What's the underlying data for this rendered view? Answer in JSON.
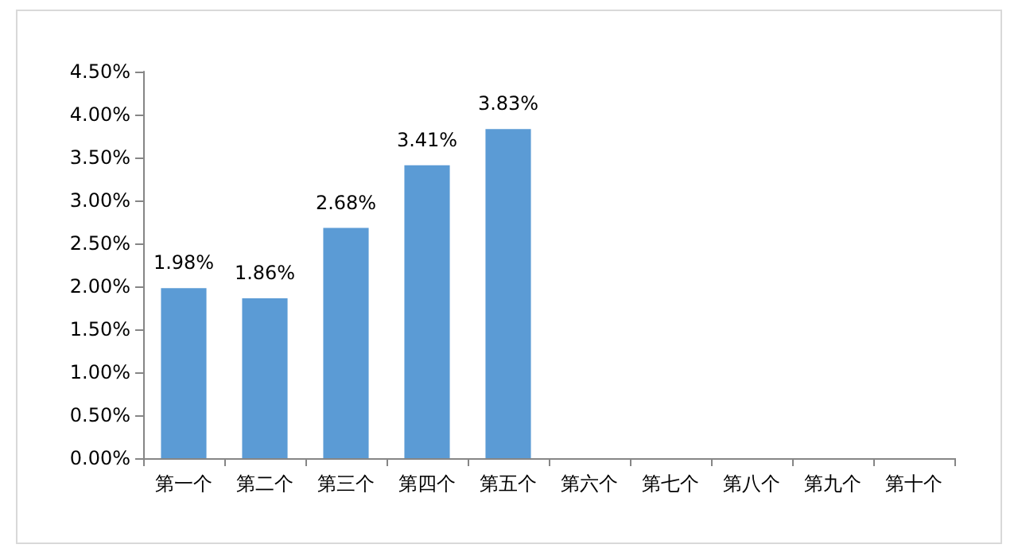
{
  "chart_data": {
    "type": "bar",
    "categories": [
      "第一个",
      "第二个",
      "第三个",
      "第四个",
      "第五个",
      "第六个",
      "第七个",
      "第八个",
      "第九个",
      "第十个"
    ],
    "values": [
      1.98,
      1.86,
      2.68,
      3.41,
      3.83,
      null,
      null,
      null,
      null,
      null
    ],
    "value_labels": [
      "1.98%",
      "1.86%",
      "2.68%",
      "3.41%",
      "3.83%",
      null,
      null,
      null,
      null,
      null
    ],
    "color": "#5b9bd5",
    "ylim": [
      0,
      4.5
    ],
    "yticks": [
      {
        "value": 0,
        "label": "0.00%"
      },
      {
        "value": 0.5,
        "label": "0.50%"
      },
      {
        "value": 1,
        "label": "1.00%"
      },
      {
        "value": 1.5,
        "label": "1.50%"
      },
      {
        "value": 2,
        "label": "2.00%"
      },
      {
        "value": 2.5,
        "label": "2.50%"
      },
      {
        "value": 3,
        "label": "3.00%"
      },
      {
        "value": 3.5,
        "label": "3.50%"
      },
      {
        "value": 4,
        "label": "4.00%"
      },
      {
        "value": 4.5,
        "label": "4.50%"
      }
    ],
    "grid": false
  }
}
